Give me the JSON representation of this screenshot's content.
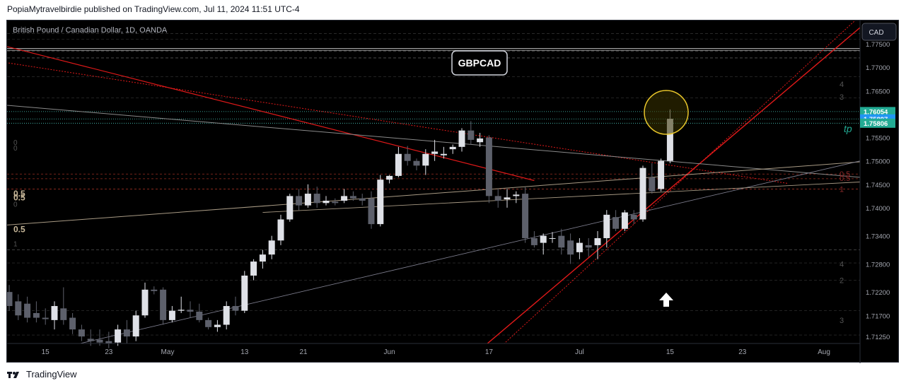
{
  "header": {
    "text": "PopiaMytravelbirdie published on TradingView.com, Jul 11, 2024 11:51 UTC-4"
  },
  "footer": {
    "logo_icon": "tradingview-logo-icon",
    "brand": "TradingView"
  },
  "symbol_label": "British Pound / Canadian Dollar, 1D, OANDA",
  "ticker_badge": "GBPCAD",
  "currency_button": "CAD",
  "tp_label": "tp",
  "colors": {
    "background": "#000000",
    "up": "#dfe1e7",
    "down": "#5d606b",
    "red": "#e01919",
    "tp_green": "#22ab94",
    "teal_dotted": "#4dd0c4",
    "highlight_circle": "#e8c52a"
  },
  "chart_data": {
    "type": "candlestick",
    "title": "British Pound / Canadian Dollar, 1D, OANDA",
    "y_axis": {
      "side": "right",
      "range": [
        1.711,
        1.78
      ],
      "ticks": [
        "1.77500",
        "1.77000",
        "1.76500",
        "1.75500",
        "1.75000",
        "1.74500",
        "1.74000",
        "1.73400",
        "1.72800",
        "1.72200",
        "1.71700",
        "1.71250"
      ]
    },
    "x_axis": {
      "labels": [
        "15",
        "23",
        "May",
        "13",
        "21",
        "Jun",
        "17",
        "Jul",
        "15",
        "23",
        "Aug"
      ]
    },
    "price_labels": [
      {
        "value": 1.76054,
        "text": "1.76054",
        "color": "#22ab94"
      },
      {
        "value": 1.75897,
        "text": "1.75897",
        "color": "#2196f3"
      },
      {
        "value": 1.75806,
        "text": "1.75806",
        "color": "#22ab94"
      }
    ],
    "left_fib_labels": [
      "0",
      "0",
      "0.5",
      "0.5",
      "0",
      "0.5",
      "1"
    ],
    "right_fib_labels": [
      "0.5",
      "0.5",
      "1",
      "4",
      "3",
      "4",
      "2",
      "3"
    ],
    "candles": [
      [
        1.722,
        1.7235,
        1.718,
        1.719
      ],
      [
        1.72,
        1.7215,
        1.716,
        1.717
      ],
      [
        1.7195,
        1.721,
        1.7155,
        1.7165
      ],
      [
        1.7175,
        1.72,
        1.7155,
        1.7165
      ],
      [
        1.7165,
        1.7185,
        1.715,
        1.7162
      ],
      [
        1.716,
        1.72,
        1.714,
        1.719
      ],
      [
        1.7185,
        1.723,
        1.715,
        1.716
      ],
      [
        1.7165,
        1.7175,
        1.713,
        1.714
      ],
      [
        1.714,
        1.715,
        1.7115,
        1.7125
      ],
      [
        1.712,
        1.714,
        1.7105,
        1.7115
      ],
      [
        1.7118,
        1.714,
        1.7105,
        1.7112
      ],
      [
        1.7115,
        1.7135,
        1.71,
        1.711
      ],
      [
        1.7112,
        1.715,
        1.7105,
        1.714
      ],
      [
        1.714,
        1.716,
        1.711,
        1.7125
      ],
      [
        1.7125,
        1.718,
        1.7115,
        1.717
      ],
      [
        1.717,
        1.724,
        1.7165,
        1.7225
      ],
      [
        1.7225,
        1.7232,
        1.7215,
        1.7222
      ],
      [
        1.7225,
        1.723,
        1.715,
        1.716
      ],
      [
        1.716,
        1.719,
        1.7155,
        1.718
      ],
      [
        1.718,
        1.721,
        1.7175,
        1.7182
      ],
      [
        1.7182,
        1.72,
        1.7165,
        1.7178
      ],
      [
        1.7178,
        1.7195,
        1.7155,
        1.716
      ],
      [
        1.716,
        1.7165,
        1.714,
        1.7145
      ],
      [
        1.7145,
        1.716,
        1.7135,
        1.715
      ],
      [
        1.715,
        1.72,
        1.714,
        1.719
      ],
      [
        1.719,
        1.721,
        1.717,
        1.718
      ],
      [
        1.718,
        1.7265,
        1.7175,
        1.7255
      ],
      [
        1.7255,
        1.729,
        1.7245,
        1.7285
      ],
      [
        1.7285,
        1.731,
        1.727,
        1.73
      ],
      [
        1.73,
        1.734,
        1.729,
        1.733
      ],
      [
        1.733,
        1.7385,
        1.732,
        1.7375
      ],
      [
        1.7375,
        1.743,
        1.737,
        1.7425
      ],
      [
        1.7425,
        1.744,
        1.7395,
        1.7405
      ],
      [
        1.7405,
        1.745,
        1.74,
        1.743
      ],
      [
        1.743,
        1.7445,
        1.74,
        1.741
      ],
      [
        1.741,
        1.7425,
        1.7405,
        1.7415
      ],
      [
        1.7413,
        1.742,
        1.7405,
        1.741
      ],
      [
        1.7415,
        1.744,
        1.741,
        1.7425
      ],
      [
        1.7425,
        1.7435,
        1.7415,
        1.742
      ],
      [
        1.742,
        1.743,
        1.7405,
        1.7415
      ],
      [
        1.742,
        1.7435,
        1.7355,
        1.7365
      ],
      [
        1.7365,
        1.747,
        1.736,
        1.746
      ],
      [
        1.746,
        1.747,
        1.7452,
        1.7468
      ],
      [
        1.7468,
        1.753,
        1.7465,
        1.7515
      ],
      [
        1.7515,
        1.7532,
        1.749,
        1.75
      ],
      [
        1.75,
        1.7505,
        1.748,
        1.749
      ],
      [
        1.749,
        1.7525,
        1.747,
        1.7515
      ],
      [
        1.7515,
        1.7545,
        1.75,
        1.752
      ],
      [
        1.7512,
        1.753,
        1.7505,
        1.7515
      ],
      [
        1.7525,
        1.7535,
        1.7515,
        1.753
      ],
      [
        1.753,
        1.757,
        1.752,
        1.7565
      ],
      [
        1.7565,
        1.7585,
        1.7535,
        1.7545
      ],
      [
        1.754,
        1.756,
        1.753,
        1.7548
      ],
      [
        1.755,
        1.7555,
        1.741,
        1.7425
      ],
      [
        1.7425,
        1.744,
        1.74,
        1.7415
      ],
      [
        1.7418,
        1.744,
        1.74,
        1.7422
      ],
      [
        1.7425,
        1.7435,
        1.741,
        1.7428
      ],
      [
        1.743,
        1.7445,
        1.7325,
        1.7335
      ],
      [
        1.7335,
        1.735,
        1.7315,
        1.732
      ],
      [
        1.7325,
        1.7345,
        1.73,
        1.734
      ],
      [
        1.7335,
        1.7348,
        1.7325,
        1.7335
      ],
      [
        1.734,
        1.7355,
        1.73,
        1.7315
      ],
      [
        1.733,
        1.7345,
        1.728,
        1.73
      ],
      [
        1.7305,
        1.7335,
        1.729,
        1.7325
      ],
      [
        1.732,
        1.7335,
        1.7295,
        1.7315
      ],
      [
        1.732,
        1.735,
        1.729,
        1.7335
      ],
      [
        1.7335,
        1.7395,
        1.7315,
        1.7385
      ],
      [
        1.738,
        1.7395,
        1.735,
        1.7355
      ],
      [
        1.7355,
        1.7395,
        1.735,
        1.739
      ],
      [
        1.7385,
        1.7395,
        1.7365,
        1.7375
      ],
      [
        1.7375,
        1.749,
        1.737,
        1.7485
      ],
      [
        1.7465,
        1.7495,
        1.743,
        1.7435
      ],
      [
        1.744,
        1.7505,
        1.7435,
        1.75
      ],
      [
        1.75,
        1.761,
        1.7495,
        1.759
      ]
    ]
  }
}
